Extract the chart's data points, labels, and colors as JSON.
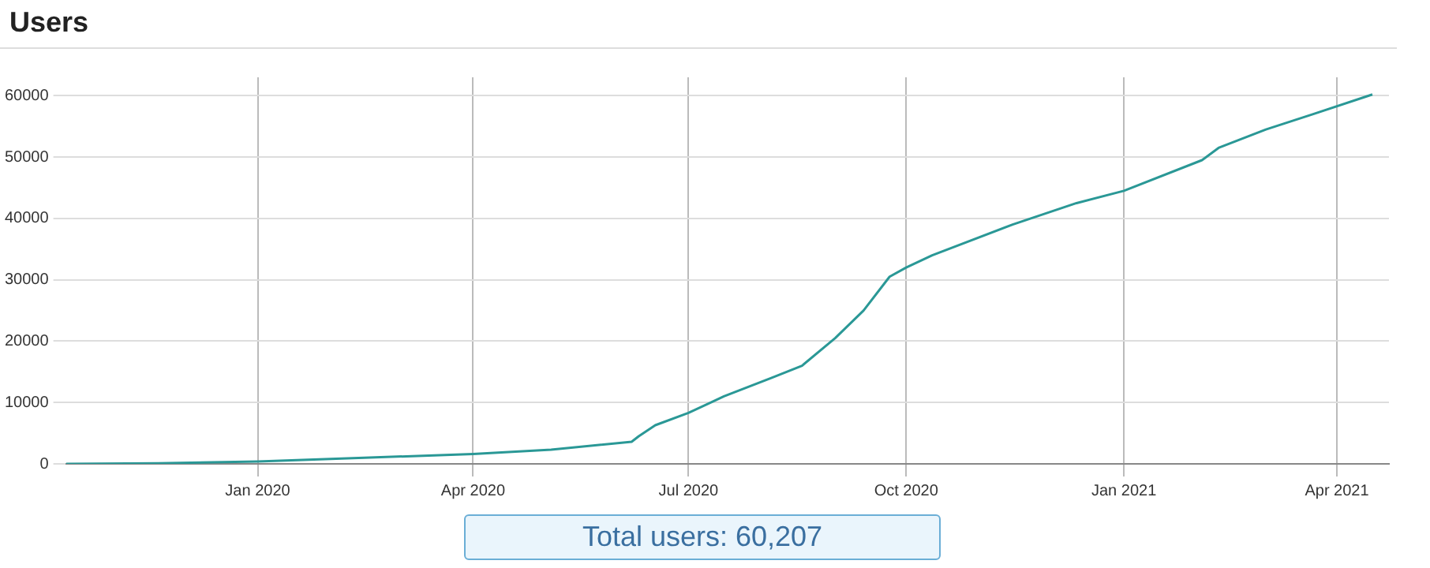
{
  "chart_data": {
    "type": "line",
    "title": "Users",
    "x": [
      "2019-10-12",
      "2019-11-20",
      "2020-01-01",
      "2020-02-15",
      "2020-04-01",
      "2020-05-04",
      "2020-06-07",
      "2020-06-10",
      "2020-06-17",
      "2020-07-01",
      "2020-07-16",
      "2020-08-05",
      "2020-08-18",
      "2020-09-01",
      "2020-09-13",
      "2020-09-24",
      "2020-10-01",
      "2020-10-12",
      "2020-11-15",
      "2020-12-12",
      "2021-01-01",
      "2021-02-03",
      "2021-02-10",
      "2021-03-02",
      "2021-03-22",
      "2021-04-16"
    ],
    "series": [
      {
        "color": "#2a9896",
        "values": [
          0,
          100,
          400,
          1000,
          1600,
          2300,
          3600,
          4500,
          6300,
          8300,
          11000,
          14000,
          16000,
          20500,
          25000,
          30500,
          32000,
          34000,
          39000,
          42500,
          44500,
          49500,
          51500,
          54500,
          57000,
          60207
        ]
      }
    ],
    "xlim": [
      "2019-10-12",
      "2021-04-23"
    ],
    "xticks": [
      {
        "value": "2020-01-01",
        "label": "Jan 2020"
      },
      {
        "value": "2020-04-01",
        "label": "Apr 2020"
      },
      {
        "value": "2020-07-01",
        "label": "Jul 2020"
      },
      {
        "value": "2020-10-01",
        "label": "Oct 2020"
      },
      {
        "value": "2021-01-01",
        "label": "Jan 2021"
      },
      {
        "value": "2021-04-01",
        "label": "Apr 2021"
      }
    ],
    "ylim": [
      0,
      63000
    ],
    "yticks": [
      0,
      10000,
      20000,
      30000,
      40000,
      50000,
      60000
    ],
    "grid": true,
    "legend": false,
    "marker": "none",
    "line_style": "solid",
    "annotations": [
      "Total users: 60,207"
    ]
  }
}
